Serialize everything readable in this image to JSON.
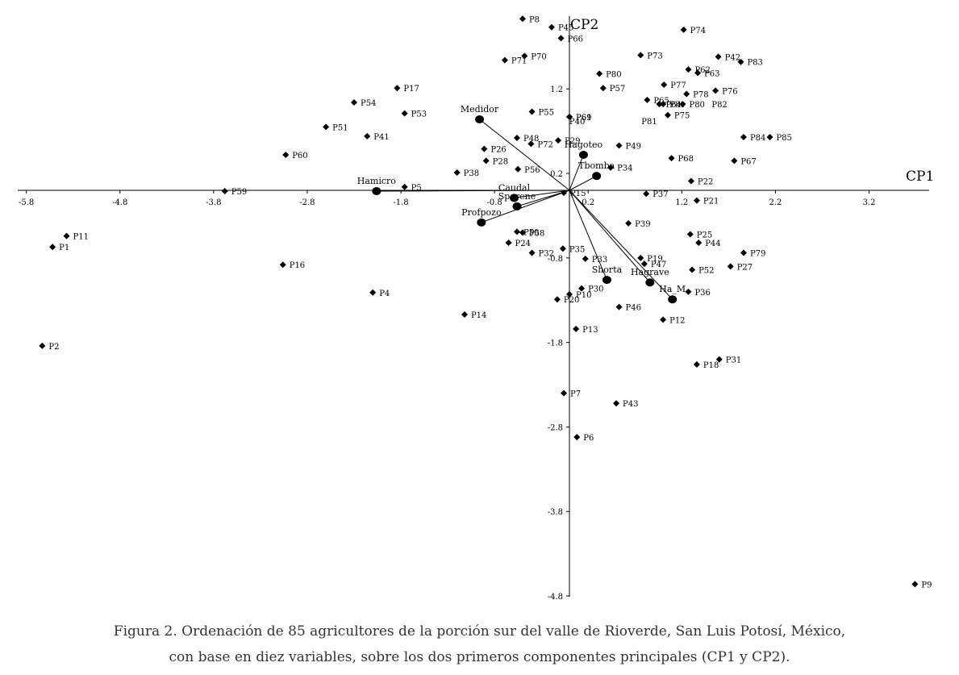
{
  "caption": {
    "line1": "Figura 2. Ordenación de 85 agricultores de la porción sur del valle de Rioverde, San Luis Potosí, México,",
    "line2": "con base en diez variables, sobre los dos primeros componentes principales (CP1 y CP2)."
  },
  "chart_data": {
    "type": "scatter",
    "title": "",
    "xlabel": "CP1",
    "ylabel": "CP2",
    "xlim": [
      -5.8,
      3.9
    ],
    "ylim": [
      -4.8,
      2.0
    ],
    "xticks": [
      "-5.8",
      "-4.8",
      "-3.8",
      "-2.8",
      "-1.8",
      "-0.8",
      "0.2",
      "1.2",
      "2.2",
      "3.2"
    ],
    "yticks": [
      "1.2",
      "0.2",
      "-0.8",
      "-1.8",
      "-2.8",
      "-3.8",
      "-4.8"
    ],
    "xtick_values": [
      -5.8,
      -4.8,
      -3.8,
      -2.8,
      -1.8,
      -0.8,
      0.2,
      1.2,
      2.2,
      3.2
    ],
    "ytick_values": [
      1.2,
      0.2,
      -0.8,
      -1.8,
      -2.8,
      -3.8,
      -4.8
    ],
    "grid": false,
    "points": [
      {
        "label": "P1",
        "x": -5.52,
        "y": -0.67
      },
      {
        "label": "P2",
        "x": -5.63,
        "y": -1.84
      },
      {
        "label": "P4",
        "x": -2.1,
        "y": -1.21
      },
      {
        "label": "P5",
        "x": -1.76,
        "y": 0.04
      },
      {
        "label": "P6",
        "x": 0.08,
        "y": -2.92
      },
      {
        "label": "P7",
        "x": -0.06,
        "y": -2.4
      },
      {
        "label": "P8",
        "x": -0.5,
        "y": 2.03
      },
      {
        "label": "P9",
        "x": 3.69,
        "y": -4.66
      },
      {
        "label": "P10",
        "x": 0.0,
        "y": -1.23
      },
      {
        "label": "P11",
        "x": -5.37,
        "y": -0.54
      },
      {
        "label": "P12",
        "x": 1.0,
        "y": -1.53
      },
      {
        "label": "P13",
        "x": 0.07,
        "y": -1.64
      },
      {
        "label": "P14",
        "x": -1.12,
        "y": -1.47
      },
      {
        "label": "P15",
        "x": -0.06,
        "y": -0.03
      },
      {
        "label": "P16",
        "x": -3.06,
        "y": -0.88
      },
      {
        "label": "P17",
        "x": -1.84,
        "y": 1.21
      },
      {
        "label": "P18",
        "x": 1.36,
        "y": -2.06
      },
      {
        "label": "P19",
        "x": 0.76,
        "y": -0.8
      },
      {
        "label": "P20",
        "x": -0.13,
        "y": -1.29
      },
      {
        "label": "P21",
        "x": 1.36,
        "y": -0.12
      },
      {
        "label": "P22",
        "x": 1.3,
        "y": 0.11
      },
      {
        "label": "P24",
        "x": -0.65,
        "y": -0.62
      },
      {
        "label": "P25",
        "x": 1.29,
        "y": -0.52
      },
      {
        "label": "P26",
        "x": -0.91,
        "y": 0.49
      },
      {
        "label": "P27",
        "x": 1.72,
        "y": -0.9
      },
      {
        "label": "P28",
        "x": -0.89,
        "y": 0.35
      },
      {
        "label": "P29",
        "x": -0.12,
        "y": 0.59
      },
      {
        "label": "P30",
        "x": 0.13,
        "y": -1.16
      },
      {
        "label": "P31",
        "x": 1.6,
        "y": -2.0
      },
      {
        "label": "P32",
        "x": -0.4,
        "y": -0.74
      },
      {
        "label": "P33",
        "x": 0.17,
        "y": -0.81
      },
      {
        "label": "P34",
        "x": 0.44,
        "y": 0.27
      },
      {
        "label": "P35",
        "x": -0.07,
        "y": -0.69
      },
      {
        "label": "P36",
        "x": 1.27,
        "y": -1.2
      },
      {
        "label": "P37",
        "x": 0.82,
        "y": -0.04
      },
      {
        "label": "P38",
        "x": -1.2,
        "y": 0.21
      },
      {
        "label": "P39",
        "x": 0.63,
        "y": -0.39
      },
      {
        "label": "P41",
        "x": -2.16,
        "y": 0.64
      },
      {
        "label": "P43",
        "x": 0.5,
        "y": -2.52
      },
      {
        "label": "P44",
        "x": 1.38,
        "y": -0.62
      },
      {
        "label": "P45",
        "x": -0.19,
        "y": 1.93
      },
      {
        "label": "P46",
        "x": 0.53,
        "y": -1.38
      },
      {
        "label": "P47",
        "x": 0.8,
        "y": -0.87
      },
      {
        "label": "P48",
        "x": -0.56,
        "y": 0.62
      },
      {
        "label": "P49",
        "x": 0.53,
        "y": 0.53
      },
      {
        "label": "P50",
        "x": -0.56,
        "y": -0.49
      },
      {
        "label": "P51",
        "x": -2.6,
        "y": 0.75
      },
      {
        "label": "P52",
        "x": 1.31,
        "y": -0.94
      },
      {
        "label": "P53",
        "x": -1.76,
        "y": 0.91
      },
      {
        "label": "P54",
        "x": -2.3,
        "y": 1.04
      },
      {
        "label": "P55",
        "x": -0.4,
        "y": 0.93
      },
      {
        "label": "P56",
        "x": -0.55,
        "y": 0.25
      },
      {
        "label": "P57",
        "x": 0.36,
        "y": 1.21
      },
      {
        "label": "P58",
        "x": -0.5,
        "y": -0.5
      },
      {
        "label": "P59",
        "x": -3.68,
        "y": -0.01
      },
      {
        "label": "P60",
        "x": -3.03,
        "y": 0.42
      },
      {
        "label": "P61",
        "x": 0.0,
        "y": 0.87
      },
      {
        "label": "P62",
        "x": 1.27,
        "y": 1.43
      },
      {
        "label": "P63",
        "x": 1.37,
        "y": 1.39
      },
      {
        "label": "P64",
        "x": 0.96,
        "y": 1.02
      },
      {
        "label": "P65",
        "x": 0.83,
        "y": 1.07
      },
      {
        "label": "P66",
        "x": -0.09,
        "y": 1.8
      },
      {
        "label": "P67",
        "x": 1.76,
        "y": 0.35
      },
      {
        "label": "P68",
        "x": 1.09,
        "y": 0.38
      },
      {
        "label": "P69",
        "x": 0.0,
        "y": 0.87
      },
      {
        "label": "P70",
        "x": -0.48,
        "y": 1.59
      },
      {
        "label": "P71",
        "x": -0.69,
        "y": 1.54
      },
      {
        "label": "P72",
        "x": -0.41,
        "y": 0.55
      },
      {
        "label": "P73",
        "x": 0.76,
        "y": 1.6
      },
      {
        "label": "P74",
        "x": 1.22,
        "y": 1.9
      },
      {
        "label": "P75",
        "x": 1.05,
        "y": 0.89
      },
      {
        "label": "P76",
        "x": 1.56,
        "y": 1.18
      },
      {
        "label": "P77",
        "x": 1.01,
        "y": 1.25
      },
      {
        "label": "P78",
        "x": 1.25,
        "y": 1.14
      },
      {
        "label": "P79",
        "x": 1.86,
        "y": -0.74
      },
      {
        "label": "P80",
        "x": 0.32,
        "y": 1.38
      },
      {
        "label": "P80",
        "x": 1.21,
        "y": 1.02
      },
      {
        "label": "P81",
        "x": 1.0,
        "y": 1.02
      },
      {
        "label": "P83",
        "x": 1.83,
        "y": 1.52
      },
      {
        "label": "P84",
        "x": 1.86,
        "y": 0.63
      },
      {
        "label": "P85",
        "x": 2.14,
        "y": 0.63
      },
      {
        "label": "P42",
        "x": 1.59,
        "y": 1.58
      }
    ],
    "extra_labels": [
      "P40",
      "P81",
      "P82"
    ],
    "variables": [
      {
        "label": "Medidor",
        "x": -0.96,
        "y": 0.84
      },
      {
        "label": "Hagoteo",
        "x": 0.15,
        "y": 0.42
      },
      {
        "label": "Tbomba",
        "x": 0.29,
        "y": 0.17
      },
      {
        "label": "Hamicro",
        "x": -2.06,
        "y": -0.01
      },
      {
        "label": "Caudal",
        "x": -0.59,
        "y": -0.09
      },
      {
        "label": "Sperene",
        "x": -0.56,
        "y": -0.19
      },
      {
        "label": "Profpozo",
        "x": -0.94,
        "y": -0.38
      },
      {
        "label": "Shorta",
        "x": 0.4,
        "y": -1.06
      },
      {
        "label": "Hagrave",
        "x": 0.86,
        "y": -1.09
      },
      {
        "label": "Ha_M",
        "x": 1.1,
        "y": -1.29
      }
    ]
  }
}
